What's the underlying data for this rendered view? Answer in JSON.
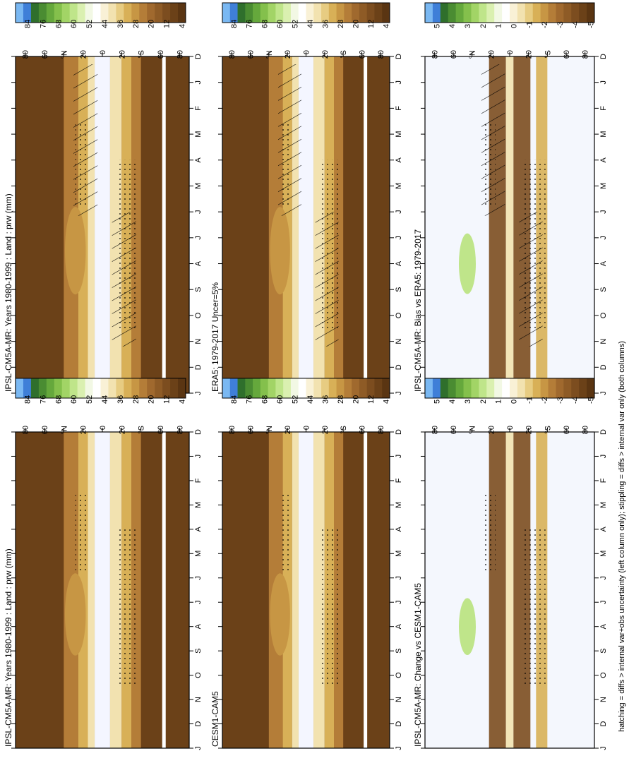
{
  "figure": {
    "footnote": "hatching = diffs > internal var+obs uncertainty (left column only); stippling = diffs > internal var only (both columns)"
  },
  "colors": {
    "abs_scale": [
      "#5a3512",
      "#6b4118",
      "#7c4d1f",
      "#8e5b26",
      "#a0692e",
      "#b47d38",
      "#c79644",
      "#d8b057",
      "#e7cc82",
      "#f2e2b0",
      "#f9f1d6",
      "#ffffff",
      "#f2f8e4",
      "#daf0b0",
      "#bfe58a",
      "#a2d466",
      "#84c04c",
      "#65a83c",
      "#4a8c32",
      "#2f6f2c",
      "#3f7fd8",
      "#7ab8f2"
    ],
    "diff_scale": [
      "#5a3512",
      "#6b4118",
      "#7c4d1f",
      "#8e5b26",
      "#a0692e",
      "#b47d38",
      "#c79644",
      "#d8b057",
      "#e7cc82",
      "#f2e2b0",
      "#f9f1d6",
      "#ffffff",
      "#f2f8e4",
      "#daf0b0",
      "#bfe58a",
      "#a2d466",
      "#84c04c",
      "#65a83c",
      "#4a8c32",
      "#2f6f2c",
      "#3f7fd8",
      "#7ab8f2"
    ],
    "frame": "#000000"
  },
  "chart_data": [
    {
      "type": "heatmap",
      "panel": "row1-left",
      "title": "IPSL-CM5A-MR: Years 1980-1999 : Land : prw (mm)",
      "x_ticks": [
        "D",
        "J",
        "F",
        "M",
        "A",
        "M",
        "J",
        "J",
        "A",
        "S",
        "O",
        "N",
        "D",
        "J"
      ],
      "lat_ticks": [
        "80",
        "60",
        "°N",
        "20",
        "0",
        "20",
        "°S",
        "60",
        "80"
      ],
      "lat_range": [
        -90,
        90
      ],
      "colorbar": {
        "labels": [
          "84",
          "76",
          "68",
          "60",
          "52",
          "44",
          "36",
          "28",
          "20",
          "12",
          "4"
        ],
        "range": [
          0,
          90
        ]
      },
      "overlay": "hatching+stippling"
    },
    {
      "type": "heatmap",
      "panel": "row1-right",
      "title": "IPSL-CM5A-MR: Years 1980-1999 : Land : prw (mm)",
      "x_ticks": [
        "D",
        "J",
        "F",
        "M",
        "A",
        "M",
        "J",
        "J",
        "A",
        "S",
        "O",
        "N",
        "D",
        "J"
      ],
      "lat_ticks": [
        "80",
        "60",
        "°N",
        "20",
        "0",
        "20",
        "°S",
        "60",
        "80"
      ],
      "lat_range": [
        -90,
        90
      ],
      "colorbar": {
        "labels": [
          "84",
          "76",
          "68",
          "60",
          "52",
          "44",
          "36",
          "28",
          "20",
          "12",
          "4"
        ],
        "range": [
          0,
          90
        ]
      },
      "overlay": "stippling"
    },
    {
      "type": "heatmap",
      "panel": "row2-left",
      "title": "ERA5: 1979-2017 Uncer=5%",
      "x_ticks": [
        "D",
        "J",
        "F",
        "M",
        "A",
        "M",
        "J",
        "J",
        "A",
        "S",
        "O",
        "N",
        "D",
        "J"
      ],
      "lat_ticks": [
        "80",
        "60",
        "°N",
        "20",
        "0",
        "20",
        "°S",
        "60",
        "80"
      ],
      "lat_range": [
        -90,
        90
      ],
      "colorbar": {
        "labels": [
          "84",
          "76",
          "68",
          "60",
          "52",
          "44",
          "36",
          "28",
          "20",
          "12",
          "4"
        ],
        "range": [
          0,
          90
        ]
      },
      "overlay": "hatching+stippling"
    },
    {
      "type": "heatmap",
      "panel": "row2-right",
      "title": "CESM1-CAM5",
      "x_ticks": [
        "D",
        "J",
        "F",
        "M",
        "A",
        "M",
        "J",
        "J",
        "A",
        "S",
        "O",
        "N",
        "D",
        "J"
      ],
      "lat_ticks": [
        "80",
        "60",
        "°N",
        "20",
        "0",
        "20",
        "°S",
        "60",
        "80"
      ],
      "lat_range": [
        -90,
        90
      ],
      "colorbar": {
        "labels": [
          "84",
          "76",
          "68",
          "60",
          "52",
          "44",
          "36",
          "28",
          "20",
          "12",
          "4"
        ],
        "range": [
          0,
          90
        ]
      },
      "overlay": "stippling"
    },
    {
      "type": "heatmap",
      "panel": "row3-left",
      "title": "IPSL-CM5A-MR: Bias vs ERA5: 1979-2017",
      "x_ticks": [
        "D",
        "J",
        "F",
        "M",
        "A",
        "M",
        "J",
        "J",
        "A",
        "S",
        "O",
        "N",
        "D",
        "J"
      ],
      "lat_ticks": [
        "80",
        "60",
        "°N",
        "20",
        "0",
        "20",
        "°S",
        "60",
        "80"
      ],
      "lat_range": [
        -90,
        90
      ],
      "colorbar": {
        "labels": [
          "5",
          "4",
          "3",
          "2",
          "1",
          "0",
          "-1",
          "-2",
          "-3",
          "-4",
          "-5"
        ],
        "range": [
          -5.5,
          5.5
        ]
      },
      "overlay": "hatching+stippling"
    },
    {
      "type": "heatmap",
      "panel": "row3-right",
      "title": "IPSL-CM5A-MR: Change vs CESM1-CAM5",
      "x_ticks": [
        "D",
        "J",
        "F",
        "M",
        "A",
        "M",
        "J",
        "J",
        "A",
        "S",
        "O",
        "N",
        "D",
        "J"
      ],
      "lat_ticks": [
        "80",
        "60",
        "°N",
        "20",
        "0",
        "20",
        "°S",
        "60",
        "80"
      ],
      "lat_range": [
        -90,
        90
      ],
      "colorbar": {
        "labels": [
          "5",
          "4",
          "3",
          "2",
          "1",
          "0",
          "-1",
          "-2",
          "-3",
          "-4",
          "-5"
        ],
        "range": [
          -5.5,
          5.5
        ]
      },
      "overlay": "stippling"
    }
  ]
}
